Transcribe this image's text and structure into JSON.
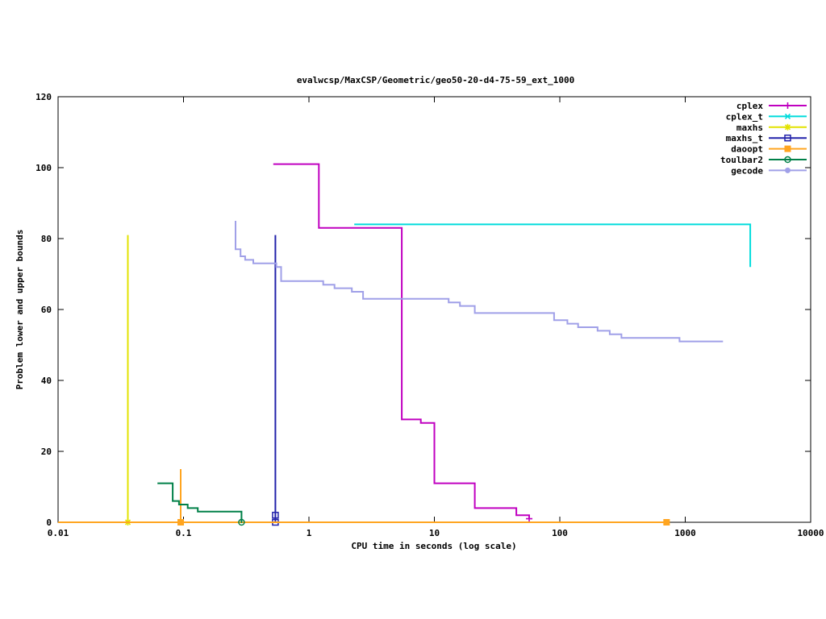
{
  "chart_data": {
    "type": "line",
    "title": "evalwcsp/MaxCSP/Geometric/geo50-20-d4-75-59_ext_1000",
    "xlabel": "CPU time in seconds (log scale)",
    "ylabel": "Problem lower and upper bounds",
    "x_scale": "log",
    "xlim": [
      0.01,
      10000
    ],
    "ylim": [
      0,
      120
    ],
    "x_ticks": [
      0.01,
      0.1,
      1,
      10,
      100,
      1000,
      10000
    ],
    "x_tick_labels": [
      "0.01",
      "0.1",
      "1",
      "10",
      "100",
      "1000",
      "10000"
    ],
    "y_ticks": [
      0,
      20,
      40,
      60,
      80,
      100,
      120
    ],
    "grid": false,
    "legend_position": "top-right",
    "series": [
      {
        "name": "cplex",
        "color": "#c000c0",
        "marker": "plus",
        "segments": [
          [
            [
              0.52,
              101
            ],
            [
              1.2,
              101
            ],
            [
              1.2,
              83
            ],
            [
              5.5,
              83
            ],
            [
              5.5,
              29
            ],
            [
              7.8,
              29
            ],
            [
              7.8,
              28
            ],
            [
              10,
              28
            ],
            [
              10,
              11
            ],
            [
              21,
              11
            ],
            [
              21,
              4
            ],
            [
              45,
              4
            ],
            [
              45,
              2
            ],
            [
              57,
              2
            ],
            [
              57,
              1
            ]
          ]
        ],
        "markers": [
          [
            57,
            1
          ]
        ]
      },
      {
        "name": "cplex_t",
        "color": "#00dcdc",
        "marker": "x",
        "segments": [
          [
            [
              2.3,
              84
            ],
            [
              3300,
              84
            ],
            [
              3300,
              72
            ]
          ]
        ],
        "markers": []
      },
      {
        "name": "maxhs",
        "color": "#e3e300",
        "marker": "asterisk",
        "segments": [
          [
            [
              0.036,
              0
            ],
            [
              0.036,
              81
            ]
          ]
        ],
        "markers": [
          [
            0.036,
            0
          ]
        ]
      },
      {
        "name": "maxhs_t",
        "color": "#2222aa",
        "marker": "square-open",
        "segments": [
          [
            [
              0.54,
              0
            ],
            [
              0.54,
              81
            ]
          ]
        ],
        "markers": [
          [
            0.54,
            0
          ],
          [
            0.54,
            2
          ]
        ]
      },
      {
        "name": "daoopt",
        "color": "#ffa520",
        "marker": "square-filled",
        "segments": [
          [
            [
              0.095,
              15
            ],
            [
              0.095,
              0
            ]
          ],
          [
            [
              0.01,
              0
            ],
            [
              710,
              0
            ]
          ]
        ],
        "markers": [
          [
            0.095,
            0
          ],
          [
            710,
            0
          ]
        ]
      },
      {
        "name": "toulbar2",
        "color": "#008048",
        "marker": "circle-open",
        "segments": [
          [
            [
              0.062,
              11
            ],
            [
              0.082,
              11
            ],
            [
              0.082,
              6
            ],
            [
              0.092,
              6
            ],
            [
              0.092,
              5
            ],
            [
              0.108,
              5
            ],
            [
              0.108,
              4
            ],
            [
              0.13,
              4
            ],
            [
              0.13,
              3
            ],
            [
              0.29,
              3
            ],
            [
              0.29,
              0
            ]
          ]
        ],
        "markers": [
          [
            0.29,
            0
          ]
        ]
      },
      {
        "name": "gecode",
        "color": "#a0a0e8",
        "marker": "circle-filled",
        "segments": [
          [
            [
              0.26,
              85
            ],
            [
              0.26,
              77
            ],
            [
              0.285,
              77
            ],
            [
              0.285,
              75
            ],
            [
              0.31,
              75
            ],
            [
              0.31,
              74
            ],
            [
              0.36,
              74
            ],
            [
              0.36,
              73
            ],
            [
              0.55,
              73
            ],
            [
              0.55,
              72
            ],
            [
              0.6,
              72
            ],
            [
              0.6,
              68
            ],
            [
              1.3,
              68
            ],
            [
              1.3,
              67
            ],
            [
              1.6,
              67
            ],
            [
              1.6,
              66
            ],
            [
              2.2,
              66
            ],
            [
              2.2,
              65
            ],
            [
              2.7,
              65
            ],
            [
              2.7,
              63
            ],
            [
              13,
              63
            ],
            [
              13,
              62
            ],
            [
              16,
              62
            ],
            [
              16,
              61
            ],
            [
              21,
              61
            ],
            [
              21,
              59
            ],
            [
              90,
              59
            ],
            [
              90,
              57
            ],
            [
              115,
              57
            ],
            [
              115,
              56
            ],
            [
              140,
              56
            ],
            [
              140,
              55
            ],
            [
              200,
              55
            ],
            [
              200,
              54
            ],
            [
              250,
              54
            ],
            [
              250,
              53
            ],
            [
              310,
              53
            ],
            [
              310,
              52
            ],
            [
              900,
              52
            ],
            [
              900,
              51
            ],
            [
              2000,
              51
            ]
          ]
        ],
        "markers": []
      }
    ]
  }
}
